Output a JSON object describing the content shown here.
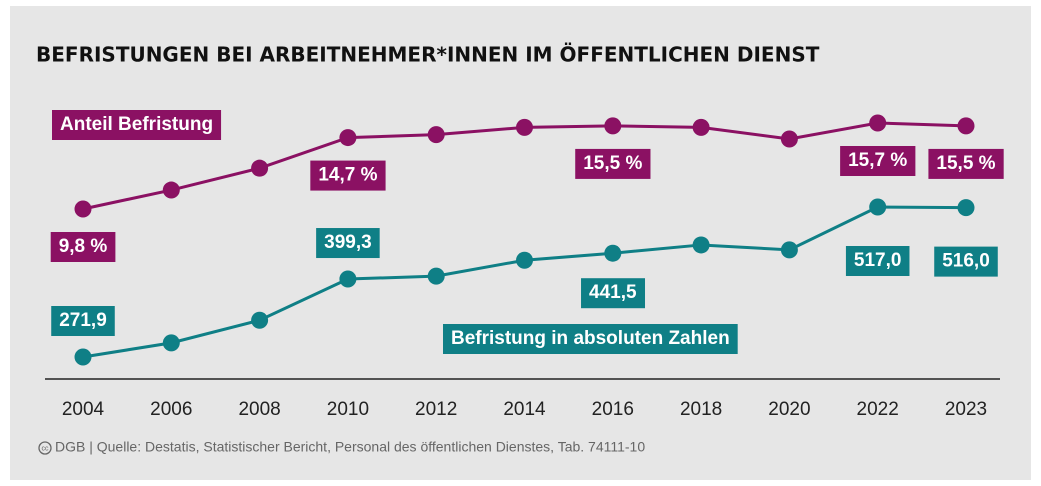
{
  "chart_data": {
    "type": "line",
    "title": "BEFRISTUNGEN BEI ARBEITNEHMER*INNEN IM ÖFFENTLICHEN DIENST",
    "source": "DGB | Quelle: Destatis, Statistischer Bericht, Personal des öffentlichen Dienstes, Tab. 74111-10",
    "categories": [
      "2004",
      "2006",
      "2008",
      "2010",
      "2012",
      "2014",
      "2016",
      "2018",
      "2020",
      "2022",
      "2023"
    ],
    "series": [
      {
        "name": "Anteil Befristung",
        "color": "#8b1163",
        "values": [
          9.8,
          11.1,
          12.6,
          14.7,
          14.9,
          15.4,
          15.5,
          15.4,
          14.6,
          15.7,
          15.5
        ],
        "value_labels": [
          "9,8 %",
          null,
          null,
          "14,7 %",
          null,
          null,
          "15,5 %",
          null,
          null,
          "15,7 %",
          "15,5 %"
        ]
      },
      {
        "name": "Befristung in absoluten Zahlen",
        "color": "#0f7f86",
        "values": [
          271.9,
          295,
          332,
          399.3,
          404,
          430,
          441.5,
          455,
          447,
          517.0,
          516.0
        ],
        "value_labels": [
          "271,9",
          null,
          null,
          "399,3",
          null,
          null,
          "441,5",
          null,
          null,
          "517,0",
          "516,0"
        ]
      }
    ]
  }
}
